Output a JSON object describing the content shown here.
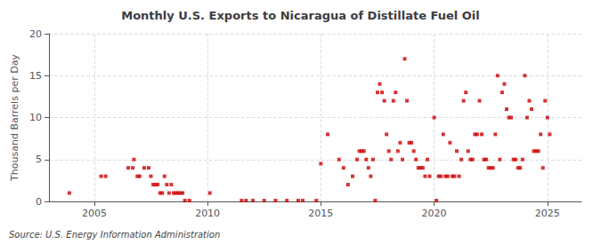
{
  "chart_data": {
    "type": "scatter",
    "title": "Monthly U.S. Exports to Nicaragua of Distillate Fuel Oil",
    "ylabel": "Thousand Barrels per Day",
    "annotations": [
      "Source: U.S. Energy Information Administration"
    ],
    "color": "#cc0000",
    "marker": "square",
    "grid": true,
    "xlim": [
      2003.0,
      2026.5
    ],
    "xticks": [
      2005,
      2010,
      2015,
      2020,
      2025
    ],
    "ylim": [
      0,
      20
    ],
    "yticks": [
      0,
      5,
      10,
      15,
      20
    ],
    "x": [
      2003.9,
      2005.3,
      2005.5,
      2006.5,
      2006.7,
      2006.9,
      2006.75,
      2007.0,
      2007.2,
      2007.4,
      2007.5,
      2007.6,
      2007.7,
      2007.8,
      2007.9,
      2008.0,
      2008.1,
      2008.2,
      2008.3,
      2008.4,
      2008.5,
      2008.6,
      2008.7,
      2008.8,
      2008.9,
      2009.0,
      2009.2,
      2010.1,
      2011.5,
      2011.7,
      2012.0,
      2012.5,
      2013.0,
      2013.5,
      2014.0,
      2014.2,
      2014.8,
      2015.0,
      2015.3,
      2015.8,
      2016.0,
      2016.2,
      2016.4,
      2016.6,
      2016.7,
      2016.8,
      2016.9,
      2017.0,
      2017.1,
      2017.2,
      2017.3,
      2017.4,
      2017.5,
      2017.6,
      2017.7,
      2017.8,
      2017.9,
      2018.0,
      2018.1,
      2018.2,
      2018.3,
      2018.4,
      2018.5,
      2018.6,
      2018.7,
      2018.8,
      2018.9,
      2019.0,
      2019.1,
      2019.2,
      2019.3,
      2019.4,
      2019.5,
      2019.6,
      2019.7,
      2019.8,
      2020.0,
      2020.1,
      2020.2,
      2020.3,
      2020.4,
      2020.5,
      2020.6,
      2020.7,
      2020.8,
      2020.9,
      2021.0,
      2021.1,
      2021.2,
      2021.3,
      2021.4,
      2021.5,
      2021.6,
      2021.7,
      2021.8,
      2021.9,
      2022.0,
      2022.1,
      2022.2,
      2022.3,
      2022.4,
      2022.5,
      2022.6,
      2022.7,
      2022.8,
      2022.9,
      2023.0,
      2023.1,
      2023.2,
      2023.3,
      2023.4,
      2023.5,
      2023.6,
      2023.7,
      2023.8,
      2023.9,
      2024.0,
      2024.1,
      2024.2,
      2024.3,
      2024.4,
      2024.5,
      2024.6,
      2024.7,
      2024.8,
      2024.9,
      2025.0,
      2025.1
    ],
    "values": [
      1,
      3,
      3,
      4,
      4,
      3,
      5,
      3,
      4,
      4,
      3,
      2,
      2,
      2,
      1,
      1,
      3,
      2,
      1,
      2,
      1,
      1,
      1,
      1,
      1,
      0.1,
      0.1,
      1,
      0.1,
      0.1,
      0.1,
      0.1,
      0.1,
      0.1,
      0.1,
      0.1,
      0.1,
      4.5,
      8,
      5,
      4,
      2,
      3,
      5,
      6,
      6,
      6,
      5,
      4,
      3,
      5,
      0.1,
      13,
      14,
      13,
      12,
      8,
      6,
      5,
      12,
      13,
      6,
      7,
      5,
      17,
      12,
      7,
      7,
      6,
      5,
      4,
      4,
      4,
      3,
      5,
      3,
      10,
      0.1,
      3,
      3,
      8,
      3,
      3,
      7,
      3,
      3,
      6,
      3,
      5,
      12,
      13,
      6,
      5,
      5,
      8,
      8,
      12,
      8,
      5,
      5,
      4,
      4,
      4,
      8,
      15,
      5,
      13,
      14,
      11,
      10,
      10,
      5,
      5,
      4,
      4,
      5,
      15,
      10,
      12,
      11,
      6,
      6,
      6,
      8,
      4,
      12,
      10,
      8
    ]
  }
}
